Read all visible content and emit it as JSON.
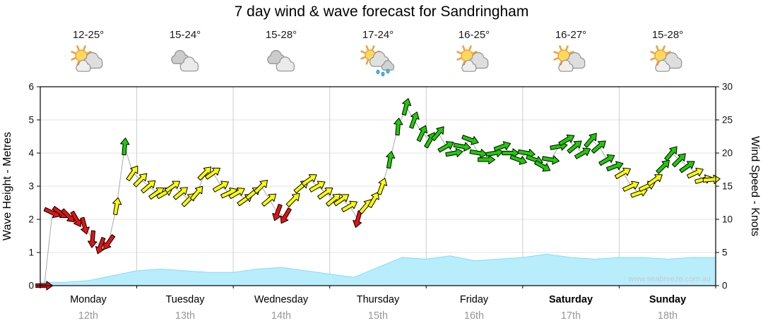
{
  "title": "7 day wind & wave forecast for Sandringham",
  "watermark": "www.seabreeze.com.au",
  "days": [
    {
      "name": "Monday",
      "date": "12th",
      "temp": "12-25°",
      "icon": "partly-cloudy"
    },
    {
      "name": "Tuesday",
      "date": "13th",
      "temp": "15-24°",
      "icon": "cloudy"
    },
    {
      "name": "Wednesday",
      "date": "14th",
      "temp": "15-28°",
      "icon": "cloudy"
    },
    {
      "name": "Thursday",
      "date": "15th",
      "temp": "17-24°",
      "icon": "showers"
    },
    {
      "name": "Friday",
      "date": "16th",
      "temp": "16-25°",
      "icon": "partly-cloudy"
    },
    {
      "name": "Saturday",
      "date": "17th",
      "temp": "16-27°",
      "icon": "partly-cloudy"
    },
    {
      "name": "Sunday",
      "date": "18th",
      "temp": "15-28°",
      "icon": "partly-cloudy"
    }
  ],
  "chart_data": {
    "type": "line",
    "title": "7 day wind & wave forecast for Sandringham",
    "categories": [
      "Monday 12th",
      "Tuesday 13th",
      "Wednesday 14th",
      "Thursday 15th",
      "Friday 16th",
      "Saturday 17th",
      "Sunday 18th"
    ],
    "left_axis": {
      "label": "Wave Height - Metres",
      "min": 0,
      "max": 6,
      "ticks": [
        0,
        1,
        2,
        3,
        4,
        5,
        6
      ]
    },
    "right_axis": {
      "label": "Wind Speed - Knots",
      "min": 0,
      "max": 30,
      "ticks": [
        0,
        5,
        10,
        15,
        20,
        25,
        30
      ]
    },
    "grid": "on",
    "series": [
      {
        "name": "Wind Speed",
        "style": "arrows",
        "axis": "right",
        "units": "knots",
        "points_per_day": 12,
        "colors": {
          "light": "#e81010",
          "moderate": "#ffff00",
          "fresh": "#1ecc00"
        },
        "thresholds": {
          "moderate": 12,
          "fresh": 17.5
        },
        "points": [
          [
            0,
            90
          ],
          [
            11,
            115
          ],
          [
            11,
            125
          ],
          [
            10.5,
            135
          ],
          [
            10,
            150
          ],
          [
            9,
            165
          ],
          [
            7,
            185
          ],
          [
            6,
            200
          ],
          [
            6.5,
            215
          ],
          [
            12,
            10
          ],
          [
            21,
            5
          ],
          [
            17,
            35
          ],
          [
            16,
            45
          ],
          [
            15,
            50
          ],
          [
            14,
            55
          ],
          [
            14,
            60
          ],
          [
            15,
            55
          ],
          [
            14,
            50
          ],
          [
            13,
            45
          ],
          [
            14,
            40
          ],
          [
            17,
            45
          ],
          [
            17,
            55
          ],
          [
            15,
            60
          ],
          [
            14,
            65
          ],
          [
            14,
            60
          ],
          [
            13,
            55
          ],
          [
            14,
            50
          ],
          [
            15,
            45
          ],
          [
            13,
            50
          ],
          [
            11,
            200
          ],
          [
            10.5,
            210
          ],
          [
            13,
            45
          ],
          [
            15,
            50
          ],
          [
            16,
            55
          ],
          [
            15,
            60
          ],
          [
            14,
            55
          ],
          [
            13,
            50
          ],
          [
            13,
            55
          ],
          [
            12,
            60
          ],
          [
            10,
            195
          ],
          [
            12,
            40
          ],
          [
            13,
            30
          ],
          [
            15,
            20
          ],
          [
            19,
            10
          ],
          [
            24,
            5
          ],
          [
            27,
            15
          ],
          [
            25,
            20
          ],
          [
            23,
            25
          ],
          [
            22,
            30
          ],
          [
            23,
            40
          ],
          [
            21,
            60
          ],
          [
            20,
            80
          ],
          [
            21,
            100
          ],
          [
            22,
            110
          ],
          [
            20,
            100
          ],
          [
            19,
            90
          ],
          [
            20,
            80
          ],
          [
            21,
            70
          ],
          [
            20,
            90
          ],
          [
            19,
            110
          ],
          [
            20,
            100
          ],
          [
            19,
            110
          ],
          [
            18,
            120
          ],
          [
            19,
            100
          ],
          [
            21,
            80
          ],
          [
            22,
            60
          ],
          [
            21,
            50
          ],
          [
            20,
            60
          ],
          [
            22,
            40
          ],
          [
            21,
            50
          ],
          [
            19,
            60
          ],
          [
            18,
            70
          ],
          [
            17,
            60
          ],
          [
            15,
            65
          ],
          [
            14,
            70
          ],
          [
            15,
            65
          ],
          [
            16,
            55
          ],
          [
            18,
            45
          ],
          [
            20,
            40
          ],
          [
            19,
            45
          ],
          [
            18,
            55
          ],
          [
            17,
            65
          ],
          [
            16,
            75
          ],
          [
            16,
            85
          ]
        ]
      },
      {
        "name": "Wave Height",
        "style": "area",
        "axis": "left",
        "units": "metres",
        "fill": "#b8edfc",
        "stroke": "#86dcf4",
        "values": [
          0.1,
          0.1,
          0.15,
          0.3,
          0.45,
          0.5,
          0.45,
          0.4,
          0.4,
          0.5,
          0.55,
          0.45,
          0.35,
          0.25,
          0.55,
          0.85,
          0.8,
          0.9,
          0.75,
          0.8,
          0.85,
          0.95,
          0.85,
          0.8,
          0.85,
          0.85,
          0.8,
          0.85,
          0.85
        ]
      }
    ]
  }
}
